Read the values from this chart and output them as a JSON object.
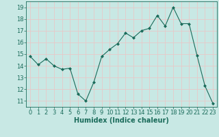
{
  "x": [
    0,
    1,
    2,
    3,
    4,
    5,
    6,
    7,
    8,
    9,
    10,
    11,
    12,
    13,
    14,
    15,
    16,
    17,
    18,
    19,
    20,
    21,
    22,
    23
  ],
  "y": [
    14.8,
    14.1,
    14.6,
    14.0,
    13.7,
    13.8,
    11.6,
    11.0,
    12.6,
    14.8,
    15.4,
    15.9,
    16.8,
    16.4,
    17.0,
    17.2,
    18.3,
    17.4,
    19.0,
    17.6,
    17.6,
    14.9,
    12.3,
    10.8
  ],
  "line_color": "#1a6b5a",
  "marker": "D",
  "marker_size": 2,
  "bg_color": "#c8e8e4",
  "grid_color": "#e8c8c8",
  "xlabel": "Humidex (Indice chaleur)",
  "ylim": [
    10.5,
    19.5
  ],
  "xlim": [
    -0.5,
    23.5
  ],
  "yticks": [
    11,
    12,
    13,
    14,
    15,
    16,
    17,
    18,
    19
  ],
  "xticks": [
    0,
    1,
    2,
    3,
    4,
    5,
    6,
    7,
    8,
    9,
    10,
    11,
    12,
    13,
    14,
    15,
    16,
    17,
    18,
    19,
    20,
    21,
    22,
    23
  ],
  "xlabel_fontsize": 7,
  "tick_fontsize": 6,
  "label_color": "#1a6b5a"
}
